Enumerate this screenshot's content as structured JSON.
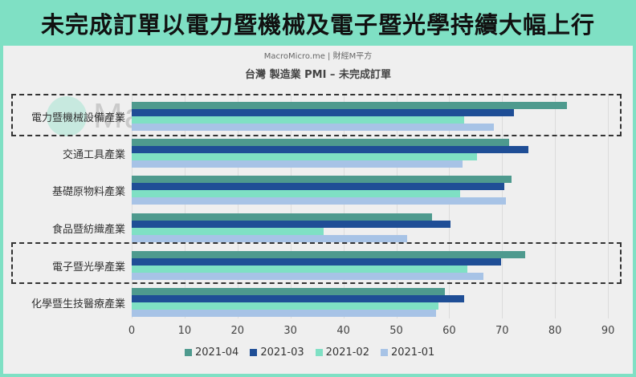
{
  "header": {
    "title": "未完成訂單以電力暨機械及電子暨光學持續大幅上行"
  },
  "source": "MacroMicro.me | 財經M平方",
  "watermark": "MacroMicro",
  "chart_data": {
    "type": "bar",
    "orientation": "horizontal",
    "title": "台灣 製造業 PMI – 未完成訂單",
    "xlabel": "",
    "ylabel": "",
    "xlim": [
      0,
      90
    ],
    "xticks": [
      "0",
      "10",
      "20",
      "30",
      "40",
      "50",
      "60",
      "70",
      "80",
      "90"
    ],
    "grid": true,
    "legend_position": "bottom",
    "categories": [
      "電力暨機械設備產業",
      "交通工具產業",
      "基礎原物料產業",
      "食品暨紡織產業",
      "電子暨光學產業",
      "化學暨生技醫療產業"
    ],
    "series": [
      {
        "name": "2021-04",
        "color": "#4e9a8e",
        "values": [
          82.2,
          71.3,
          71.8,
          56.8,
          74.4,
          59.2
        ]
      },
      {
        "name": "2021-03",
        "color": "#1f4e96",
        "values": [
          72.2,
          75.0,
          70.4,
          60.2,
          69.8,
          62.8
        ]
      },
      {
        "name": "2021-02",
        "color": "#7fe0c4",
        "values": [
          62.8,
          65.3,
          62.1,
          36.3,
          63.4,
          58.0
        ]
      },
      {
        "name": "2021-01",
        "color": "#a7c3e6",
        "values": [
          68.4,
          62.5,
          70.7,
          52.0,
          66.5,
          57.5
        ]
      }
    ],
    "highlighted_categories": [
      "電力暨機械設備產業",
      "電子暨光學產業"
    ]
  }
}
